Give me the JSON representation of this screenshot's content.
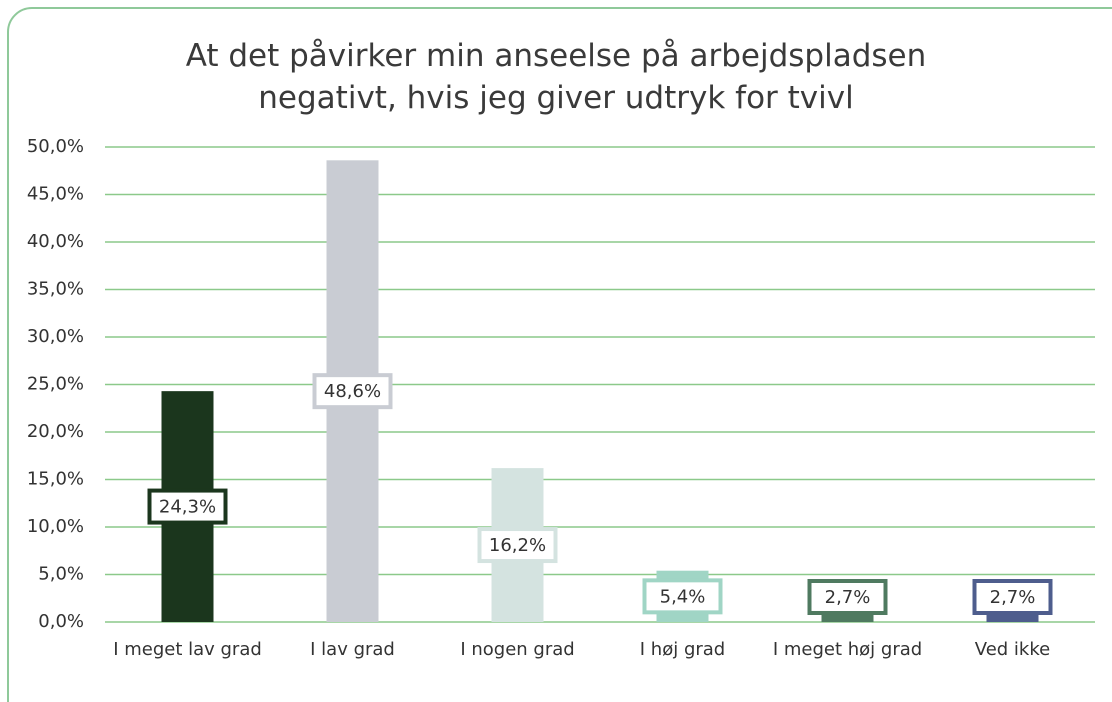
{
  "chart_data": {
    "type": "bar",
    "title": [
      "At det påvirker min anseelse på arbejdspladsen",
      "negativt, hvis jeg giver udtryk for tvivl"
    ],
    "categories": [
      "I meget lav grad",
      "I lav grad",
      "I nogen grad",
      "I høj grad",
      "I meget høj grad",
      "Ved ikke"
    ],
    "values": [
      24.3,
      48.6,
      16.2,
      5.4,
      2.7,
      2.7
    ],
    "value_labels": [
      "24,3%",
      "48,6%",
      "16,2%",
      "5,4%",
      "2,7%",
      "2,7%"
    ],
    "colors": [
      "#1b361d",
      "#c9ccd3",
      "#d4e3e0",
      "#a0d5c5",
      "#4f7a60",
      "#4e5d8d"
    ],
    "ylim": [
      0,
      50
    ],
    "yticks": [
      {
        "value": 0,
        "label": "0,0%"
      },
      {
        "value": 5,
        "label": "5,0%"
      },
      {
        "value": 10,
        "label": "10,0%"
      },
      {
        "value": 15,
        "label": "15,0%"
      },
      {
        "value": 20,
        "label": "20,0%"
      },
      {
        "value": 25,
        "label": "25,0%"
      },
      {
        "value": 30,
        "label": "30,0%"
      },
      {
        "value": 35,
        "label": "35,0%"
      },
      {
        "value": 40,
        "label": "40,0%"
      },
      {
        "value": 45,
        "label": "45,0%"
      },
      {
        "value": 50,
        "label": "50,0%"
      }
    ],
    "grid": true
  }
}
